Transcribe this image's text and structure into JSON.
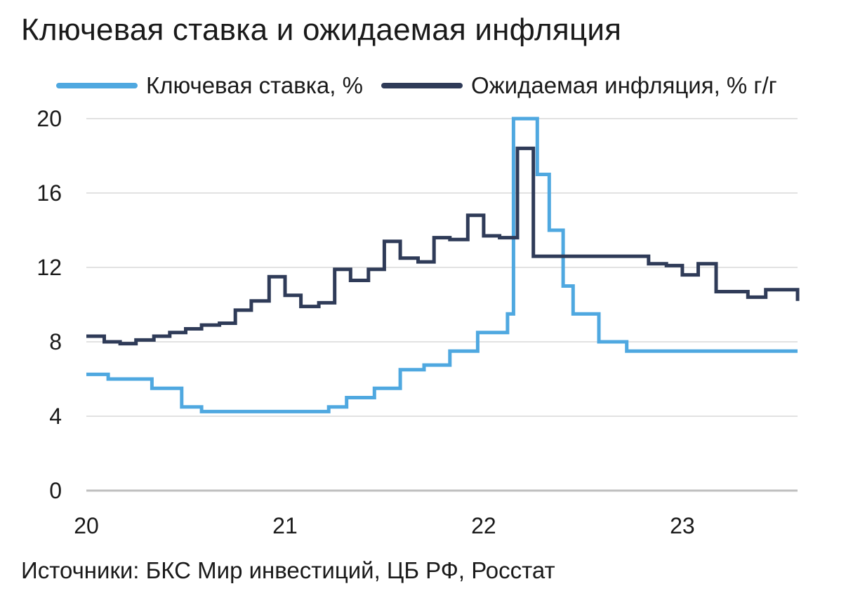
{
  "title": "Ключевая ставка и ожидаемая инфляция",
  "source": "Источники: БКС Мир инвестиций, ЦБ РФ, Росстат",
  "chart_data": {
    "type": "line",
    "step": true,
    "xlim": [
      2020.0,
      2023.58
    ],
    "ylim": [
      0,
      20
    ],
    "yticks": [
      0,
      4,
      8,
      12,
      16,
      20
    ],
    "xticks": [
      {
        "value": 2020,
        "label": "20"
      },
      {
        "value": 2021,
        "label": "21"
      },
      {
        "value": 2022,
        "label": "22"
      },
      {
        "value": 2023,
        "label": "23"
      }
    ],
    "grid": "horizontal",
    "legend_position": "top",
    "series": [
      {
        "name": "Ключевая ставка, %",
        "color": "#4fa8e0",
        "points": [
          [
            2020.0,
            6.25
          ],
          [
            2020.11,
            6.0
          ],
          [
            2020.33,
            5.5
          ],
          [
            2020.48,
            4.5
          ],
          [
            2020.58,
            4.25
          ],
          [
            2021.22,
            4.5
          ],
          [
            2021.31,
            5.0
          ],
          [
            2021.45,
            5.5
          ],
          [
            2021.58,
            6.5
          ],
          [
            2021.7,
            6.75
          ],
          [
            2021.83,
            7.5
          ],
          [
            2021.97,
            8.5
          ],
          [
            2022.12,
            9.5
          ],
          [
            2022.15,
            20.0
          ],
          [
            2022.27,
            17.0
          ],
          [
            2022.33,
            14.0
          ],
          [
            2022.4,
            11.0
          ],
          [
            2022.45,
            9.5
          ],
          [
            2022.58,
            8.0
          ],
          [
            2022.72,
            7.5
          ],
          [
            2023.58,
            7.5
          ]
        ]
      },
      {
        "name": "Ожидаемая инфляция, % г/г",
        "color": "#2f3b58",
        "points": [
          [
            2020.0,
            8.3
          ],
          [
            2020.09,
            8.0
          ],
          [
            2020.17,
            7.9
          ],
          [
            2020.25,
            8.1
          ],
          [
            2020.34,
            8.3
          ],
          [
            2020.42,
            8.5
          ],
          [
            2020.5,
            8.7
          ],
          [
            2020.58,
            8.9
          ],
          [
            2020.67,
            9.0
          ],
          [
            2020.75,
            9.7
          ],
          [
            2020.83,
            10.2
          ],
          [
            2020.92,
            11.5
          ],
          [
            2021.0,
            10.5
          ],
          [
            2021.08,
            9.9
          ],
          [
            2021.17,
            10.1
          ],
          [
            2021.25,
            11.9
          ],
          [
            2021.33,
            11.3
          ],
          [
            2021.42,
            11.9
          ],
          [
            2021.5,
            13.4
          ],
          [
            2021.58,
            12.5
          ],
          [
            2021.67,
            12.3
          ],
          [
            2021.75,
            13.6
          ],
          [
            2021.83,
            13.5
          ],
          [
            2021.92,
            14.8
          ],
          [
            2022.0,
            13.7
          ],
          [
            2022.08,
            13.6
          ],
          [
            2022.17,
            18.4
          ],
          [
            2022.25,
            12.6
          ],
          [
            2022.75,
            12.6
          ],
          [
            2022.83,
            12.2
          ],
          [
            2022.92,
            12.1
          ],
          [
            2023.0,
            11.6
          ],
          [
            2023.08,
            12.2
          ],
          [
            2023.17,
            10.7
          ],
          [
            2023.33,
            10.4
          ],
          [
            2023.42,
            10.8
          ],
          [
            2023.5,
            10.8
          ],
          [
            2023.58,
            10.2
          ]
        ]
      }
    ]
  }
}
